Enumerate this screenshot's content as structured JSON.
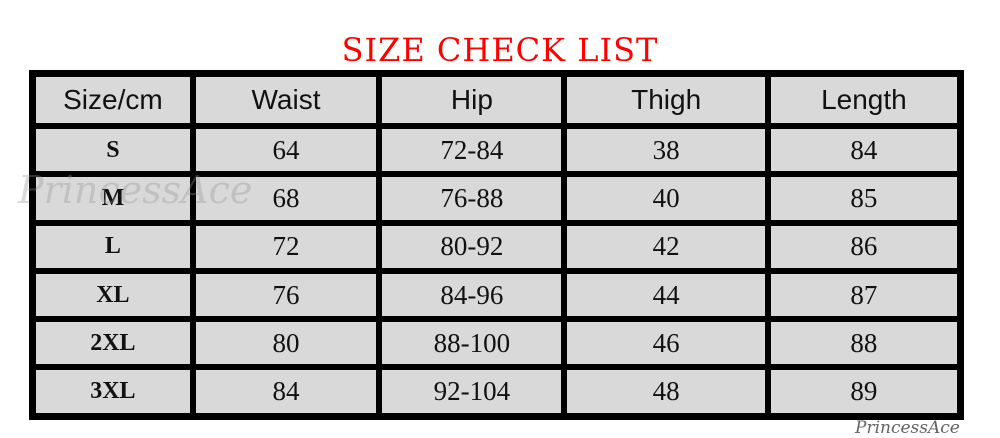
{
  "title": "SIZE CHECK LIST",
  "headers": [
    "Size/cm",
    "Waist",
    "Hip",
    "Thigh",
    "Length"
  ],
  "rows": [
    [
      "S",
      "64",
      "72-84",
      "38",
      "84"
    ],
    [
      "M",
      "68",
      "76-88",
      "40",
      "85"
    ],
    [
      "L",
      "72",
      "80-92",
      "42",
      "86"
    ],
    [
      "XL",
      "76",
      "84-96",
      "44",
      "87"
    ],
    [
      "2XL",
      "80",
      "88-100",
      "46",
      "88"
    ],
    [
      "3XL",
      "84",
      "92-104",
      "48",
      "89"
    ]
  ],
  "watermark": "PrincessAce",
  "colors": {
    "title": "#ff0000",
    "cell_bg": "#d9d9d9",
    "border": "#000000"
  }
}
